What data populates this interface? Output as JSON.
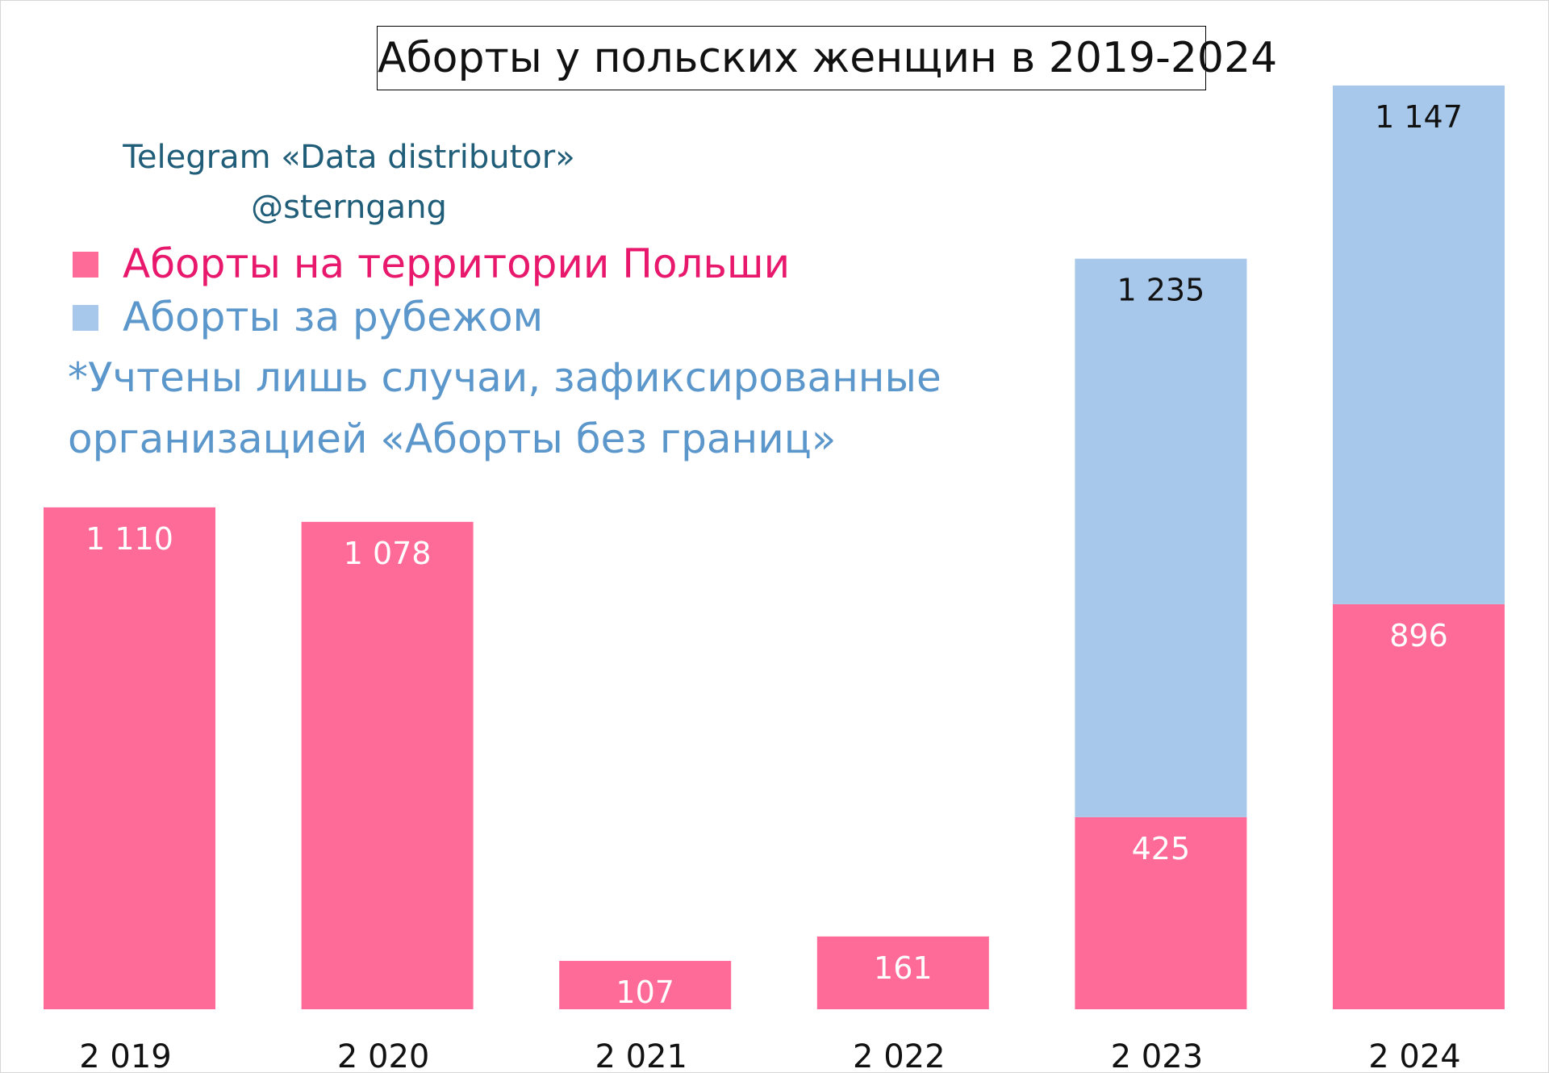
{
  "chart_data": {
    "type": "bar",
    "stacked": true,
    "title": "Аборты у польских женщин в 2019-2024",
    "categories": [
      "2 019",
      "2 020",
      "2 021",
      "2 022",
      "2 023",
      "2 024"
    ],
    "series": [
      {
        "name": "Аборты на территории Польши",
        "color": "#ff6b98",
        "values": [
          1110,
          1078,
          107,
          161,
          425,
          896
        ],
        "labels": [
          "1 110",
          "1 078",
          "107",
          "161",
          "425",
          "896"
        ]
      },
      {
        "name": "Аборты за рубежом",
        "color": "#a7c8ea",
        "values": [
          null,
          null,
          null,
          null,
          1235,
          1147
        ],
        "labels": [
          "",
          "",
          "",
          "",
          "1 235",
          "1 147"
        ]
      }
    ],
    "legend_colors": [
      "#e8186d",
      "#5c97cc"
    ],
    "ylim": [
      0,
      2043
    ],
    "grid": false,
    "legend": "top-left",
    "credit": [
      "Telegram «Data distributor»",
      "@sterngang"
    ],
    "note": [
      "*Учтены лишь случаи, зафиксированные",
      "организацией «Аборты без границ»"
    ]
  }
}
